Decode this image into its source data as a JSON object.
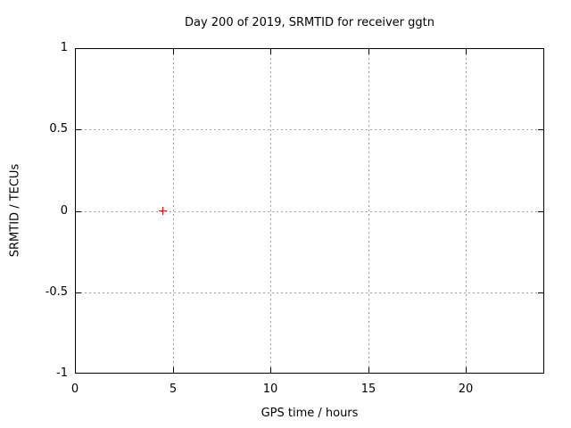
{
  "chart_data": {
    "type": "scatter",
    "title": "Day 200 of 2019, SRMTID for receiver ggtn",
    "xlabel": "GPS time / hours",
    "ylabel": "SRMTID / TECUs",
    "xlim": [
      0,
      24
    ],
    "ylim": [
      -1,
      1
    ],
    "xticks": [
      0,
      5,
      10,
      15,
      20
    ],
    "yticks": [
      -1,
      -0.5,
      0,
      0.5,
      1
    ],
    "grid": true,
    "grid_style": "dotted",
    "legend_position": "none",
    "series": [
      {
        "name": "SRMTID",
        "marker": "plus",
        "color": "#ff0000",
        "points": [
          {
            "x": 4.5,
            "y": 0.0
          }
        ]
      }
    ],
    "colors": {
      "grid": "#a0a0a0",
      "axis": "#000000",
      "text": "#000000",
      "background": "#ffffff",
      "marker": "#ff0000"
    }
  }
}
